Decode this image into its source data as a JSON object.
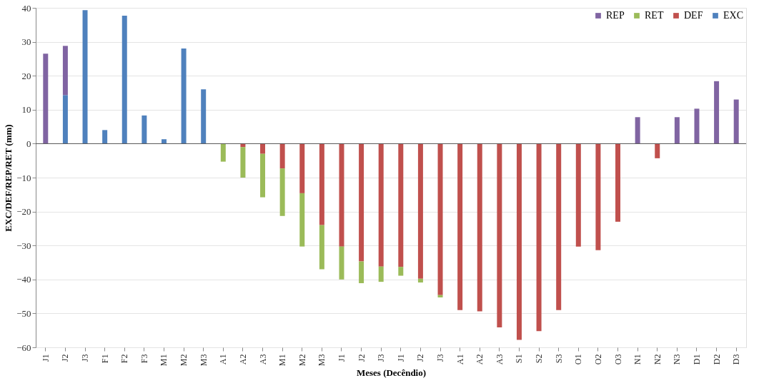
{
  "chart_data": {
    "type": "bar",
    "stacked": true,
    "xlabel": "Meses (Decêndio)",
    "ylabel": "EXC/DEF/REP/RET (mm)",
    "categories": [
      "J1",
      "J2",
      "J3",
      "F1",
      "F2",
      "F3",
      "M1",
      "M2",
      "M3",
      "A1",
      "A2",
      "A3",
      "M1",
      "M2",
      "M3",
      "J1",
      "J2",
      "J3",
      "J1",
      "J2",
      "J3",
      "A1",
      "A2",
      "A3",
      "S1",
      "S2",
      "S3",
      "O1",
      "O2",
      "O3",
      "N1",
      "N2",
      "N3",
      "D1",
      "D2",
      "D3"
    ],
    "series": [
      {
        "name": "EXC",
        "color": "#4f81bd",
        "values": [
          null,
          14.3,
          39.3,
          4,
          37.7,
          8.3,
          1.3,
          28,
          16,
          null,
          null,
          null,
          null,
          null,
          null,
          null,
          null,
          null,
          null,
          null,
          null,
          null,
          null,
          null,
          null,
          null,
          null,
          null,
          null,
          null,
          null,
          null,
          null,
          null,
          null,
          null
        ]
      },
      {
        "name": "DEF",
        "color": "#c0504d",
        "values": [
          null,
          null,
          null,
          null,
          null,
          null,
          null,
          null,
          null,
          null,
          -1,
          -3,
          -7.3,
          -14.6,
          -24,
          -30.3,
          -34.7,
          -36.2,
          -36.3,
          -39.8,
          -44.6,
          -49,
          -49.4,
          -54.1,
          -57.8,
          -55.2,
          -49,
          -30.3,
          -31.4,
          -23,
          null,
          -4.3,
          null,
          null,
          null,
          null
        ]
      },
      {
        "name": "RET",
        "color": "#9bbb59",
        "values": [
          null,
          null,
          null,
          null,
          null,
          null,
          null,
          null,
          null,
          -5.3,
          -9,
          -12.8,
          -14,
          -15.7,
          -13,
          -9.7,
          -6.4,
          -4.5,
          -2.6,
          -1.1,
          -0.7,
          null,
          null,
          null,
          null,
          null,
          null,
          null,
          null,
          null,
          null,
          null,
          null,
          null,
          null,
          null
        ]
      },
      {
        "name": "REP",
        "color": "#8064a2",
        "values": [
          26.5,
          14.5,
          null,
          null,
          null,
          null,
          null,
          null,
          null,
          null,
          null,
          null,
          null,
          null,
          null,
          null,
          null,
          null,
          null,
          null,
          null,
          null,
          null,
          null,
          null,
          null,
          null,
          null,
          null,
          null,
          7.8,
          null,
          7.8,
          10.3,
          18.4,
          13
        ]
      }
    ],
    "ylim": [
      -60,
      40
    ],
    "yticks": [
      -60,
      -50,
      -40,
      -30,
      -20,
      -10,
      0,
      10,
      20,
      30,
      40
    ],
    "grid": "y",
    "legend": "top right"
  }
}
